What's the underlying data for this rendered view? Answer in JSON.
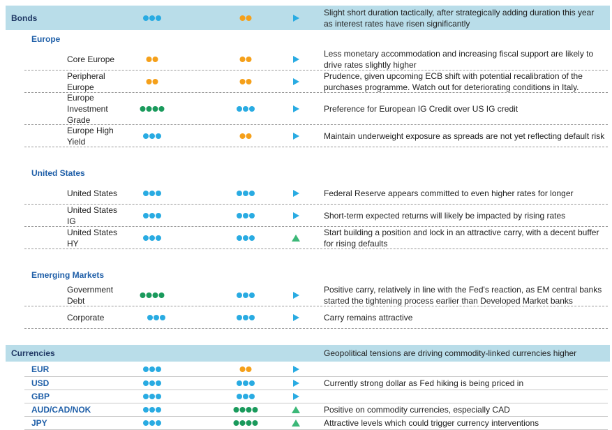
{
  "sections": [
    {
      "header": {
        "label": "Bonds",
        "view_a": {
          "dots": 3,
          "color": "#29abe2"
        },
        "view_b": {
          "dots": 2,
          "color": "#f5a01a"
        },
        "arrow": {
          "dir": "right",
          "color": "#29abe2"
        },
        "comment": "Slight short duration tactically, after strategically adding duration this year as interest rates have risen significantly"
      },
      "groups": [
        {
          "title": "Europe",
          "rows": [
            {
              "label": "Core Europe",
              "view_a": {
                "dots": 2,
                "color": "#f5a01a"
              },
              "view_b": {
                "dots": 2,
                "color": "#f5a01a"
              },
              "arrow": {
                "dir": "right",
                "color": "#29abe2"
              },
              "comment": "Less monetary accommodation and increasing fiscal support are likely to drive rates slightly higher"
            },
            {
              "label": "Peripheral Europe",
              "view_a": {
                "dots": 2,
                "color": "#f5a01a"
              },
              "view_b": {
                "dots": 2,
                "color": "#f5a01a"
              },
              "arrow": {
                "dir": "right",
                "color": "#29abe2"
              },
              "comment": "Prudence, given upcoming ECB shift with potential recalibration of the purchases programme. Watch out for deteriorating conditions in Italy."
            },
            {
              "label": "Europe Investment Grade",
              "view_a": {
                "dots": 4,
                "color": "#1a9a5c"
              },
              "view_b": {
                "dots": 3,
                "color": "#29abe2"
              },
              "arrow": {
                "dir": "right",
                "color": "#29abe2"
              },
              "comment": "Preference for European IG Credit over US IG credit"
            },
            {
              "label": "Europe High Yield",
              "view_a": {
                "dots": 3,
                "color": "#29abe2"
              },
              "view_b": {
                "dots": 2,
                "color": "#f5a01a"
              },
              "arrow": {
                "dir": "right",
                "color": "#29abe2"
              },
              "comment": "Maintain underweight exposure as spreads are not yet reflecting default risk"
            }
          ]
        },
        {
          "title": "United States",
          "rows": [
            {
              "label": "United States",
              "view_a": {
                "dots": 3,
                "color": "#29abe2"
              },
              "view_b": {
                "dots": 3,
                "color": "#29abe2"
              },
              "arrow": {
                "dir": "right",
                "color": "#29abe2"
              },
              "comment": "Federal Reserve appears committed to even higher rates for longer"
            },
            {
              "label": "United States IG",
              "view_a": {
                "dots": 3,
                "color": "#29abe2"
              },
              "view_b": {
                "dots": 3,
                "color": "#29abe2"
              },
              "arrow": {
                "dir": "right",
                "color": "#29abe2"
              },
              "comment": "Short-term expected returns will likely be impacted by rising rates"
            },
            {
              "label": "United States HY",
              "view_a": {
                "dots": 3,
                "color": "#29abe2"
              },
              "view_b": {
                "dots": 3,
                "color": "#29abe2"
              },
              "arrow": {
                "dir": "up",
                "color": "#3cb878"
              },
              "comment": "Start building a position and lock in an attractive carry, with a decent buffer for rising defaults"
            }
          ]
        },
        {
          "title": "Emerging Markets",
          "rows": [
            {
              "label": "Government Debt",
              "view_a": {
                "dots": 4,
                "color": "#1a9a5c"
              },
              "view_b": {
                "dots": 3,
                "color": "#29abe2"
              },
              "arrow": {
                "dir": "right",
                "color": "#29abe2"
              },
              "comment": "Positive carry, relatively in line with the Fed's reaction, as EM central banks started the tightening process earlier than Developed Market banks"
            },
            {
              "label": "Corporate",
              "view_a": {
                "dots": 3,
                "color": "#29abe2"
              },
              "view_b": {
                "dots": 3,
                "color": "#29abe2"
              },
              "arrow": {
                "dir": "right",
                "color": "#29abe2"
              },
              "comment": "Carry remains attractive"
            }
          ]
        }
      ]
    },
    {
      "header": {
        "label": "Currencies",
        "comment": "Geopolitical tensions are driving commodity-linked currencies higher"
      },
      "groups": [
        {
          "rows": [
            {
              "label": "EUR",
              "view_a": {
                "dots": 3,
                "color": "#29abe2"
              },
              "view_b": {
                "dots": 2,
                "color": "#f5a01a"
              },
              "arrow": {
                "dir": "right",
                "color": "#29abe2"
              }
            },
            {
              "label": "USD",
              "view_a": {
                "dots": 3,
                "color": "#29abe2"
              },
              "view_b": {
                "dots": 3,
                "color": "#29abe2"
              },
              "arrow": {
                "dir": "right",
                "color": "#29abe2"
              },
              "comment": "Currently strong dollar as Fed hiking is being priced in"
            },
            {
              "label": "GBP",
              "view_a": {
                "dots": 3,
                "color": "#29abe2"
              },
              "view_b": {
                "dots": 3,
                "color": "#29abe2"
              },
              "arrow": {
                "dir": "right",
                "color": "#29abe2"
              }
            },
            {
              "label": "AUD/CAD/NOK",
              "view_a": {
                "dots": 3,
                "color": "#29abe2"
              },
              "view_b": {
                "dots": 4,
                "color": "#1a9a5c"
              },
              "arrow": {
                "dir": "up",
                "color": "#3cb878"
              },
              "comment": "Positive on commodity currencies, especially CAD"
            },
            {
              "label": "JPY",
              "view_a": {
                "dots": 3,
                "color": "#29abe2"
              },
              "view_b": {
                "dots": 4,
                "color": "#1a9a5c"
              },
              "arrow": {
                "dir": "up",
                "color": "#3cb878"
              },
              "comment": "Attractive levels which could trigger currency interventions"
            }
          ]
        }
      ]
    }
  ]
}
